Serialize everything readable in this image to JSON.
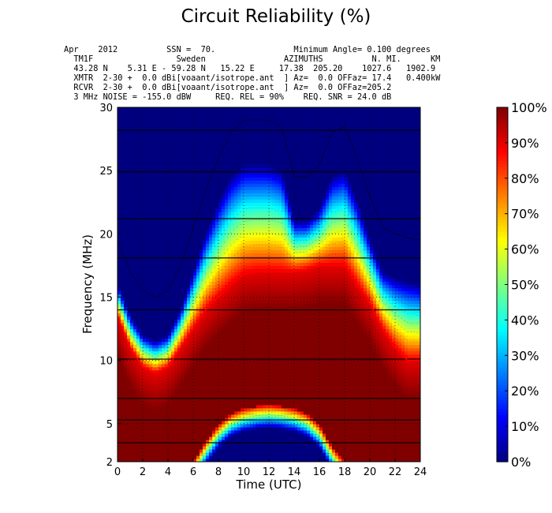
{
  "chart_data": {
    "type": "heatmap",
    "title": "Circuit Reliability (%)",
    "header_lines": [
      "Apr    2012          SSN =  70.                Minimum Angle= 0.100 degrees",
      "  TM1F                 Sweden                AZIMUTHS          N. MI.      KM",
      "  43.28 N    5.31 E - 59.28 N   15.22 E     17.38  205.20    1027.6   1902.9",
      "  XMTR  2-30 +  0.0 dBi[voaant/isotrope.ant  ] Az=  0.0 OFFaz= 17.4   0.400kW",
      "  RCVR  2-30 +  0.0 dBi[voaant/isotrope.ant  ] Az=  0.0 OFFaz=205.2",
      "  3 MHz NOISE = -155.0 dBW     REQ. REL = 90%    REQ. SNR = 24.0 dB"
    ],
    "xlabel": "Time (UTC)",
    "ylabel": "Frequency (MHz)",
    "xlim": [
      0,
      24
    ],
    "ylim": [
      2,
      30
    ],
    "xticks": [
      "0",
      "2",
      "4",
      "6",
      "8",
      "10",
      "12",
      "14",
      "16",
      "18",
      "20",
      "22",
      "24"
    ],
    "yticks": [
      "2",
      "5",
      "10",
      "15",
      "20",
      "25",
      "30"
    ],
    "grid": true,
    "colorscale": "jet",
    "colorbar_ticks": [
      "0%",
      "10%",
      "20%",
      "30%",
      "40%",
      "50%",
      "60%",
      "70%",
      "80%",
      "90%",
      "100%"
    ],
    "reliability_90_contour_color": "#ff0000",
    "frequency_lines_mhz": [
      3.5,
      5.3,
      7.0,
      10.1,
      14.0,
      18.1,
      21.2,
      24.9,
      28.2
    ],
    "time_utc": [
      0,
      1,
      2,
      3,
      4,
      5,
      6,
      7,
      8,
      9,
      10,
      11,
      12,
      13,
      14,
      15,
      16,
      17,
      18,
      19,
      20,
      21,
      22,
      23,
      24
    ],
    "muf_mhz": [
      16.0,
      13.5,
      12.0,
      11.5,
      12.0,
      14.0,
      17.0,
      20.0,
      22.5,
      24.5,
      25.5,
      25.5,
      25.5,
      25.0,
      21.0,
      21.0,
      22.0,
      24.5,
      25.0,
      22.5,
      19.5,
      17.0,
      16.5,
      16.2,
      16.0
    ],
    "lower_cutoff_mhz": [
      0,
      0,
      0,
      0,
      0,
      0,
      2.0,
      3.6,
      4.9,
      5.8,
      6.2,
      6.4,
      6.5,
      6.4,
      6.2,
      5.8,
      4.9,
      3.2,
      2.0,
      0,
      0,
      0,
      0,
      0,
      0
    ],
    "fot90_mhz": [
      13.5,
      11.0,
      9.5,
      9.0,
      9.5,
      11.0,
      12.5,
      14.0,
      15.0,
      16.0,
      16.8,
      17.0,
      17.0,
      17.0,
      17.0,
      17.2,
      17.5,
      17.5,
      17.5,
      16.0,
      14.5,
      12.5,
      11.0,
      10.0,
      10.0
    ]
  }
}
